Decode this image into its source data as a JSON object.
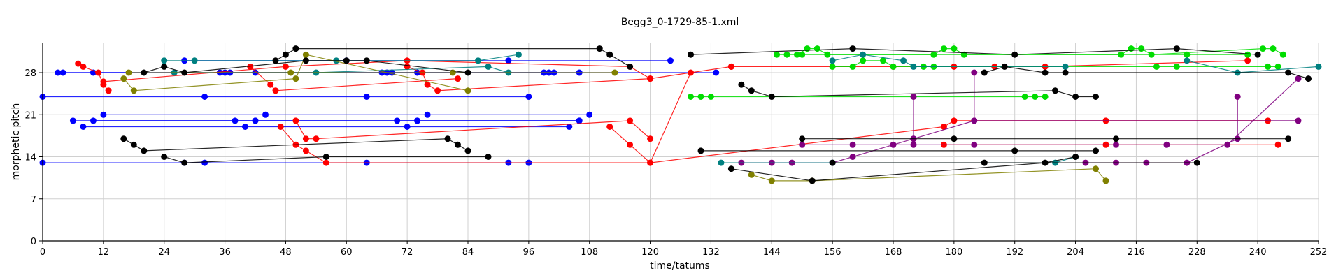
{
  "chart_data": {
    "type": "scatter",
    "title": "Begg3_0-1729-85-1.xml",
    "xlabel": "time/tatums",
    "ylabel": "morphetic pitch",
    "xlim": [
      0,
      252
    ],
    "ylim": [
      0,
      33
    ],
    "xticks": [
      0,
      12,
      24,
      36,
      48,
      60,
      72,
      84,
      96,
      108,
      120,
      132,
      144,
      156,
      168,
      180,
      192,
      204,
      216,
      228,
      240,
      252
    ],
    "yticks": [
      0,
      7,
      14,
      21,
      28
    ],
    "grid": true,
    "legend": "none",
    "series": [
      {
        "color": "#0000ff",
        "points": [
          [
            0,
            13
          ],
          [
            28,
            13
          ],
          [
            32,
            13
          ],
          [
            64,
            13
          ],
          [
            92,
            13
          ],
          [
            96,
            13
          ]
        ]
      },
      {
        "color": "#0000ff",
        "points": [
          [
            0,
            24
          ],
          [
            32,
            24
          ],
          [
            64,
            24
          ],
          [
            96,
            24
          ]
        ]
      },
      {
        "color": "#0000ff",
        "points": [
          [
            6,
            20
          ],
          [
            38,
            20
          ],
          [
            42,
            20
          ],
          [
            70,
            20
          ],
          [
            74,
            20
          ],
          [
            106,
            20
          ]
        ]
      },
      {
        "color": "#0000ff",
        "points": [
          [
            8,
            19
          ],
          [
            40,
            19
          ],
          [
            72,
            19
          ],
          [
            104,
            19
          ]
        ]
      },
      {
        "color": "#0000ff",
        "points": [
          [
            10,
            20
          ],
          [
            42,
            20
          ],
          [
            74,
            20
          ],
          [
            106,
            20
          ]
        ]
      },
      {
        "color": "#0000ff",
        "points": [
          [
            12,
            21
          ],
          [
            44,
            21
          ],
          [
            76,
            21
          ],
          [
            108,
            21
          ]
        ]
      },
      {
        "color": "#0000ff",
        "points": [
          [
            3,
            28
          ],
          [
            35,
            28
          ],
          [
            67,
            28
          ],
          [
            99,
            28
          ]
        ]
      },
      {
        "color": "#0000ff",
        "points": [
          [
            4,
            28
          ],
          [
            36,
            28
          ],
          [
            68,
            28
          ],
          [
            100,
            28
          ]
        ]
      },
      {
        "color": "#0000ff",
        "points": [
          [
            10,
            28
          ],
          [
            42,
            28
          ],
          [
            74,
            28
          ],
          [
            106,
            28
          ]
        ]
      },
      {
        "color": "#0000ff",
        "points": [
          [
            28,
            30
          ],
          [
            60,
            30
          ],
          [
            92,
            30
          ],
          [
            124,
            30
          ]
        ]
      },
      {
        "color": "#0000ff",
        "points": [
          [
            37,
            28
          ],
          [
            69,
            28
          ],
          [
            101,
            28
          ],
          [
            133,
            28
          ]
        ]
      },
      {
        "color": "#ff0000",
        "points": [
          [
            7,
            29.5
          ],
          [
            8,
            29
          ],
          [
            11,
            28
          ],
          [
            12,
            26
          ],
          [
            13,
            25
          ]
        ]
      },
      {
        "color": "#ff0000",
        "points": [
          [
            12,
            26.5
          ],
          [
            48,
            29
          ],
          [
            72,
            30
          ],
          [
            116,
            29
          ],
          [
            120,
            27
          ]
        ]
      },
      {
        "color": "#ff0000",
        "points": [
          [
            41,
            29
          ],
          [
            45,
            26
          ],
          [
            46,
            25
          ],
          [
            82,
            27
          ]
        ]
      },
      {
        "color": "#ff0000",
        "points": [
          [
            47,
            19
          ],
          [
            50,
            16
          ],
          [
            52,
            15
          ],
          [
            56,
            13
          ],
          [
            120,
            13
          ],
          [
            128,
            28
          ]
        ]
      },
      {
        "color": "#ff0000",
        "points": [
          [
            50,
            20
          ],
          [
            52,
            17
          ],
          [
            54,
            17
          ],
          [
            116,
            20
          ],
          [
            120,
            17
          ]
        ]
      },
      {
        "color": "#ff0000",
        "points": [
          [
            72,
            29
          ],
          [
            75,
            28
          ],
          [
            76,
            26
          ],
          [
            78,
            25
          ],
          [
            120,
            27
          ],
          [
            136,
            29
          ]
        ]
      },
      {
        "color": "#ff0000",
        "points": [
          [
            112,
            19
          ],
          [
            116,
            16
          ],
          [
            120,
            13
          ],
          [
            178,
            19
          ],
          [
            180,
            20
          ]
        ]
      },
      {
        "color": "#ff0000",
        "points": [
          [
            136,
            29
          ],
          [
            168,
            29
          ],
          [
            180,
            29
          ],
          [
            188,
            29
          ],
          [
            198,
            29
          ],
          [
            238,
            30
          ]
        ]
      },
      {
        "color": "#ff0000",
        "points": [
          [
            178,
            16
          ],
          [
            210,
            16
          ],
          [
            244,
            16
          ]
        ]
      },
      {
        "color": "#ff0000",
        "points": [
          [
            180,
            20
          ],
          [
            210,
            20
          ],
          [
            242,
            20
          ]
        ]
      },
      {
        "color": "#00dd00",
        "points": [
          [
            128,
            24
          ],
          [
            130,
            24
          ],
          [
            132,
            24
          ],
          [
            194,
            24
          ],
          [
            196,
            24
          ],
          [
            198,
            24
          ]
        ]
      },
      {
        "color": "#00dd00",
        "points": [
          [
            145,
            31
          ],
          [
            147,
            31
          ],
          [
            149,
            31
          ],
          [
            151,
            32
          ],
          [
            153,
            32
          ],
          [
            155,
            31
          ],
          [
            213,
            31
          ],
          [
            215,
            32
          ],
          [
            217,
            32
          ],
          [
            219,
            31
          ],
          [
            241,
            32
          ],
          [
            243,
            32
          ],
          [
            245,
            31
          ]
        ]
      },
      {
        "color": "#00dd00",
        "points": [
          [
            150,
            31
          ],
          [
            176,
            31
          ],
          [
            178,
            32
          ],
          [
            180,
            32
          ],
          [
            182,
            31
          ],
          [
            226,
            31
          ],
          [
            238,
            31
          ]
        ]
      },
      {
        "color": "#00dd00",
        "points": [
          [
            156,
            29
          ],
          [
            160,
            29
          ],
          [
            162,
            30
          ],
          [
            166,
            30
          ],
          [
            168,
            29
          ],
          [
            174,
            29
          ],
          [
            176,
            29
          ],
          [
            220,
            29
          ],
          [
            224,
            29
          ],
          [
            242,
            29
          ],
          [
            244,
            29
          ]
        ]
      },
      {
        "color": "#800080",
        "points": [
          [
            138,
            13
          ],
          [
            144,
            13
          ],
          [
            148,
            13
          ],
          [
            156,
            13
          ],
          [
            160,
            14
          ],
          [
            168,
            16
          ],
          [
            172,
            17
          ],
          [
            184,
            20
          ],
          [
            248,
            20
          ]
        ]
      },
      {
        "color": "#800080",
        "points": [
          [
            150,
            16
          ],
          [
            160,
            16
          ],
          [
            172,
            16
          ],
          [
            184,
            16
          ],
          [
            212,
            16
          ],
          [
            222,
            16
          ],
          [
            234,
            16
          ],
          [
            248,
            27
          ]
        ]
      },
      {
        "color": "#800080",
        "points": [
          [
            172,
            24
          ],
          [
            172,
            17
          ]
        ]
      },
      {
        "color": "#800080",
        "points": [
          [
            184,
            28
          ],
          [
            184,
            20
          ]
        ]
      },
      {
        "color": "#800080",
        "points": [
          [
            206,
            13
          ],
          [
            212,
            13
          ],
          [
            218,
            13
          ],
          [
            226,
            13
          ],
          [
            236,
            17
          ],
          [
            236,
            24
          ]
        ]
      },
      {
        "color": "#008080",
        "points": [
          [
            24,
            30
          ],
          [
            30,
            30
          ],
          [
            58,
            30
          ],
          [
            86,
            30
          ],
          [
            94,
            31
          ]
        ]
      },
      {
        "color": "#008080",
        "points": [
          [
            26,
            28
          ],
          [
            54,
            28
          ],
          [
            88,
            29
          ],
          [
            92,
            28
          ]
        ]
      },
      {
        "color": "#008080",
        "points": [
          [
            134,
            13
          ],
          [
            156,
            13
          ],
          [
            200,
            13
          ],
          [
            204,
            14
          ]
        ]
      },
      {
        "color": "#008080",
        "points": [
          [
            156,
            30
          ],
          [
            162,
            31
          ],
          [
            170,
            30
          ],
          [
            172,
            29
          ],
          [
            202,
            29
          ]
        ]
      },
      {
        "color": "#008080",
        "points": [
          [
            226,
            30
          ],
          [
            236,
            28
          ],
          [
            252,
            29
          ]
        ]
      },
      {
        "color": "#808000",
        "points": [
          [
            16,
            27
          ],
          [
            18,
            25
          ],
          [
            50,
            27
          ],
          [
            52,
            31
          ],
          [
            84,
            25
          ]
        ]
      },
      {
        "color": "#808000",
        "points": [
          [
            17,
            28
          ],
          [
            49,
            28
          ],
          [
            81,
            28
          ],
          [
            113,
            28
          ]
        ]
      },
      {
        "color": "#808000",
        "points": [
          [
            140,
            11
          ],
          [
            144,
            10
          ],
          [
            152,
            10
          ],
          [
            208,
            12
          ],
          [
            210,
            10
          ]
        ]
      },
      {
        "color": "#000000",
        "points": [
          [
            16,
            17
          ],
          [
            18,
            16
          ],
          [
            20,
            15
          ],
          [
            80,
            17
          ],
          [
            82,
            16
          ],
          [
            84,
            15
          ]
        ]
      },
      {
        "color": "#000000",
        "points": [
          [
            20,
            28
          ],
          [
            24,
            29
          ],
          [
            28,
            28
          ],
          [
            52,
            30
          ],
          [
            60,
            30
          ],
          [
            64,
            30
          ],
          [
            84,
            28
          ]
        ]
      },
      {
        "color": "#000000",
        "points": [
          [
            24,
            14
          ],
          [
            28,
            13
          ],
          [
            56,
            14
          ],
          [
            88,
            14
          ]
        ]
      },
      {
        "color": "#000000",
        "points": [
          [
            46,
            30
          ],
          [
            48,
            31
          ],
          [
            50,
            32
          ],
          [
            110,
            32
          ],
          [
            112,
            31
          ],
          [
            116,
            29
          ]
        ]
      },
      {
        "color": "#000000",
        "points": [
          [
            128,
            31
          ],
          [
            160,
            32
          ],
          [
            192,
            31
          ],
          [
            224,
            32
          ],
          [
            240,
            31
          ]
        ]
      },
      {
        "color": "#000000",
        "points": [
          [
            130,
            15
          ],
          [
            192,
            15
          ],
          [
            208,
            15
          ]
        ]
      },
      {
        "color": "#000000",
        "points": [
          [
            136,
            12
          ],
          [
            152,
            10
          ],
          [
            198,
            13
          ],
          [
            204,
            14
          ]
        ]
      },
      {
        "color": "#000000",
        "points": [
          [
            138,
            26
          ],
          [
            140,
            25
          ],
          [
            144,
            24
          ],
          [
            200,
            25
          ],
          [
            204,
            24
          ],
          [
            208,
            24
          ]
        ]
      },
      {
        "color": "#000000",
        "points": [
          [
            150,
            17
          ],
          [
            180,
            17
          ],
          [
            212,
            17
          ],
          [
            246,
            17
          ]
        ]
      },
      {
        "color": "#000000",
        "points": [
          [
            156,
            13
          ],
          [
            186,
            13
          ],
          [
            228,
            13
          ]
        ]
      },
      {
        "color": "#000000",
        "points": [
          [
            186,
            28
          ],
          [
            190,
            29
          ],
          [
            198,
            28
          ],
          [
            202,
            28
          ],
          [
            246,
            28
          ],
          [
            250,
            27
          ]
        ]
      }
    ]
  }
}
